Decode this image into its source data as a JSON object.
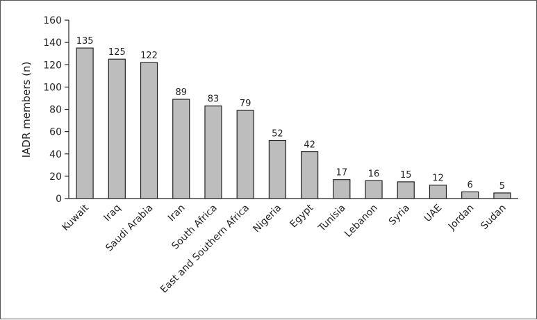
{
  "chart_data": {
    "type": "bar",
    "ylabel": "IADR members (n)",
    "xlabel": "",
    "ylim": [
      0,
      160
    ],
    "yticks": [
      0,
      20,
      40,
      60,
      80,
      100,
      120,
      140,
      160
    ],
    "grid": false,
    "legend": "none",
    "bar_color": "#bdbdbd",
    "bar_edge_color": "#222222",
    "categories": [
      "Kuwait",
      "Iraq",
      "Saudi Arabia",
      "Iran",
      "South Africa",
      "East and Southern Africa",
      "Nigeria",
      "Egypt",
      "Tunisia",
      "Lebanon",
      "Syria",
      "UAE",
      "Jordan",
      "Sudan"
    ],
    "values": [
      135,
      125,
      122,
      89,
      83,
      79,
      52,
      42,
      17,
      16,
      15,
      12,
      6,
      5
    ],
    "data_labels": [
      "135",
      "125",
      "122",
      "89",
      "83",
      "79",
      "52",
      "42",
      "17",
      "16",
      "15",
      "12",
      "6",
      "5"
    ]
  }
}
